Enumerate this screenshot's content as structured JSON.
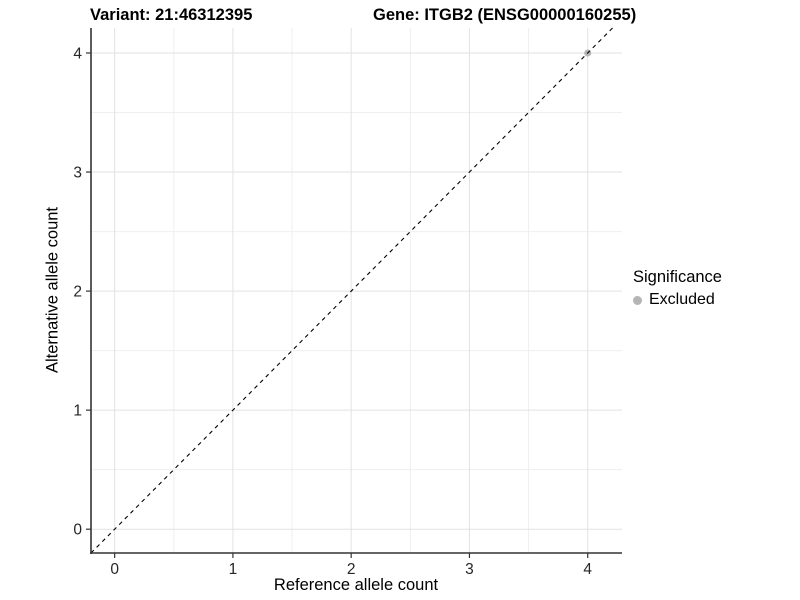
{
  "chart_data": {
    "type": "scatter",
    "title_variant": "Variant: 21:46312395",
    "title_gene": "Gene: ITGB2 (ENSG00000160255)",
    "xlabel": "Reference allele count",
    "ylabel": "Alternative allele count",
    "xlim": [
      -0.2,
      4.29
    ],
    "ylim": [
      -0.2,
      4.21
    ],
    "xticks": [
      0,
      1,
      2,
      3,
      4
    ],
    "yticks": [
      0,
      1,
      2,
      3,
      4
    ],
    "minor_xticks": [
      0.5,
      1.5,
      2.5,
      3.5
    ],
    "minor_yticks": [
      0.5,
      1.5,
      2.5,
      3.5
    ],
    "grid": {
      "major": true,
      "minor": true
    },
    "identity_line": {
      "style": "dashed",
      "equation": "y = x",
      "color": "#000000"
    },
    "series": [
      {
        "name": "Excluded",
        "color": "#b5b5b5",
        "points": [
          {
            "x": 4,
            "y": 4
          }
        ]
      }
    ],
    "legend": {
      "title": "Significance",
      "position": "right",
      "items": [
        {
          "label": "Excluded",
          "color": "#b5b5b5"
        }
      ]
    }
  },
  "colors": {
    "background": "#ffffff",
    "axis_line": "#333333",
    "major_grid": "#e2e2e2",
    "minor_grid": "#efefef",
    "tick_text": "#262626"
  }
}
